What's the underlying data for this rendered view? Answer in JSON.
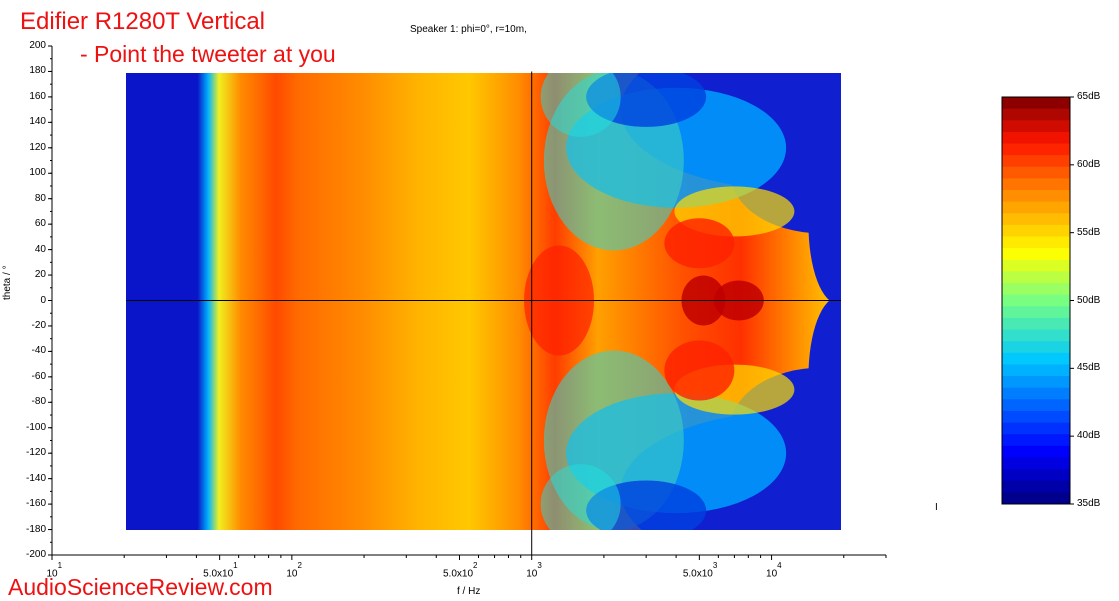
{
  "title_line1": "Edifier R1280T Vertical",
  "title_line2": "- Point the tweeter at you",
  "subtitle": "Speaker 1: phi=0°, r=10m,",
  "watermark": "AudioScienceReview.com",
  "axis_marker": "I",
  "chart_data": {
    "type": "heatmap",
    "xlabel": "f / Hz",
    "ylabel": "theta / °",
    "x_scale": "log",
    "xlim": [
      10,
      30000
    ],
    "ylim": [
      -200,
      200
    ],
    "x_data_range": [
      20,
      20000
    ],
    "y_data_range": [
      -180,
      180
    ],
    "y_ticks": [
      200,
      180,
      160,
      140,
      120,
      100,
      80,
      60,
      40,
      20,
      0,
      -20,
      -40,
      -60,
      -80,
      -100,
      -120,
      -140,
      -160,
      -180,
      -200
    ],
    "x_tick_labels": [
      {
        "base": "10",
        "exp": "1"
      },
      {
        "base": "5.0x10",
        "exp": "1"
      },
      {
        "base": "10",
        "exp": "2"
      },
      {
        "base": "5.0x10",
        "exp": "2"
      },
      {
        "base": "10",
        "exp": "3"
      },
      {
        "base": "5.0x10",
        "exp": "3"
      },
      {
        "base": "10",
        "exp": "4"
      }
    ],
    "x_tick_values": [
      10,
      50,
      100,
      500,
      1000,
      5000,
      10000
    ],
    "crosshair": {
      "x": 1000,
      "y": 0
    },
    "colorbar": {
      "unit": "dB",
      "range": [
        35,
        65
      ],
      "labels": [
        "65dB",
        "60dB",
        "55dB",
        "50dB",
        "45dB",
        "40dB",
        "35dB"
      ],
      "label_values": [
        65,
        60,
        55,
        50,
        45,
        40,
        35
      ],
      "levels": 35
    },
    "frequency_profile_on_axis": [
      {
        "f": 20,
        "dB": 35
      },
      {
        "f": 40,
        "dB": 38
      },
      {
        "f": 47,
        "dB": 48
      },
      {
        "f": 55,
        "dB": 53
      },
      {
        "f": 70,
        "dB": 57
      },
      {
        "f": 100,
        "dB": 60
      },
      {
        "f": 150,
        "dB": 58
      },
      {
        "f": 300,
        "dB": 57
      },
      {
        "f": 500,
        "dB": 55
      },
      {
        "f": 800,
        "dB": 56
      },
      {
        "f": 1200,
        "dB": 60
      },
      {
        "f": 2000,
        "dB": 58
      },
      {
        "f": 5000,
        "dB": 62
      },
      {
        "f": 8000,
        "dB": 61
      },
      {
        "f": 15000,
        "dB": 57
      },
      {
        "f": 20000,
        "dB": 55
      }
    ]
  }
}
